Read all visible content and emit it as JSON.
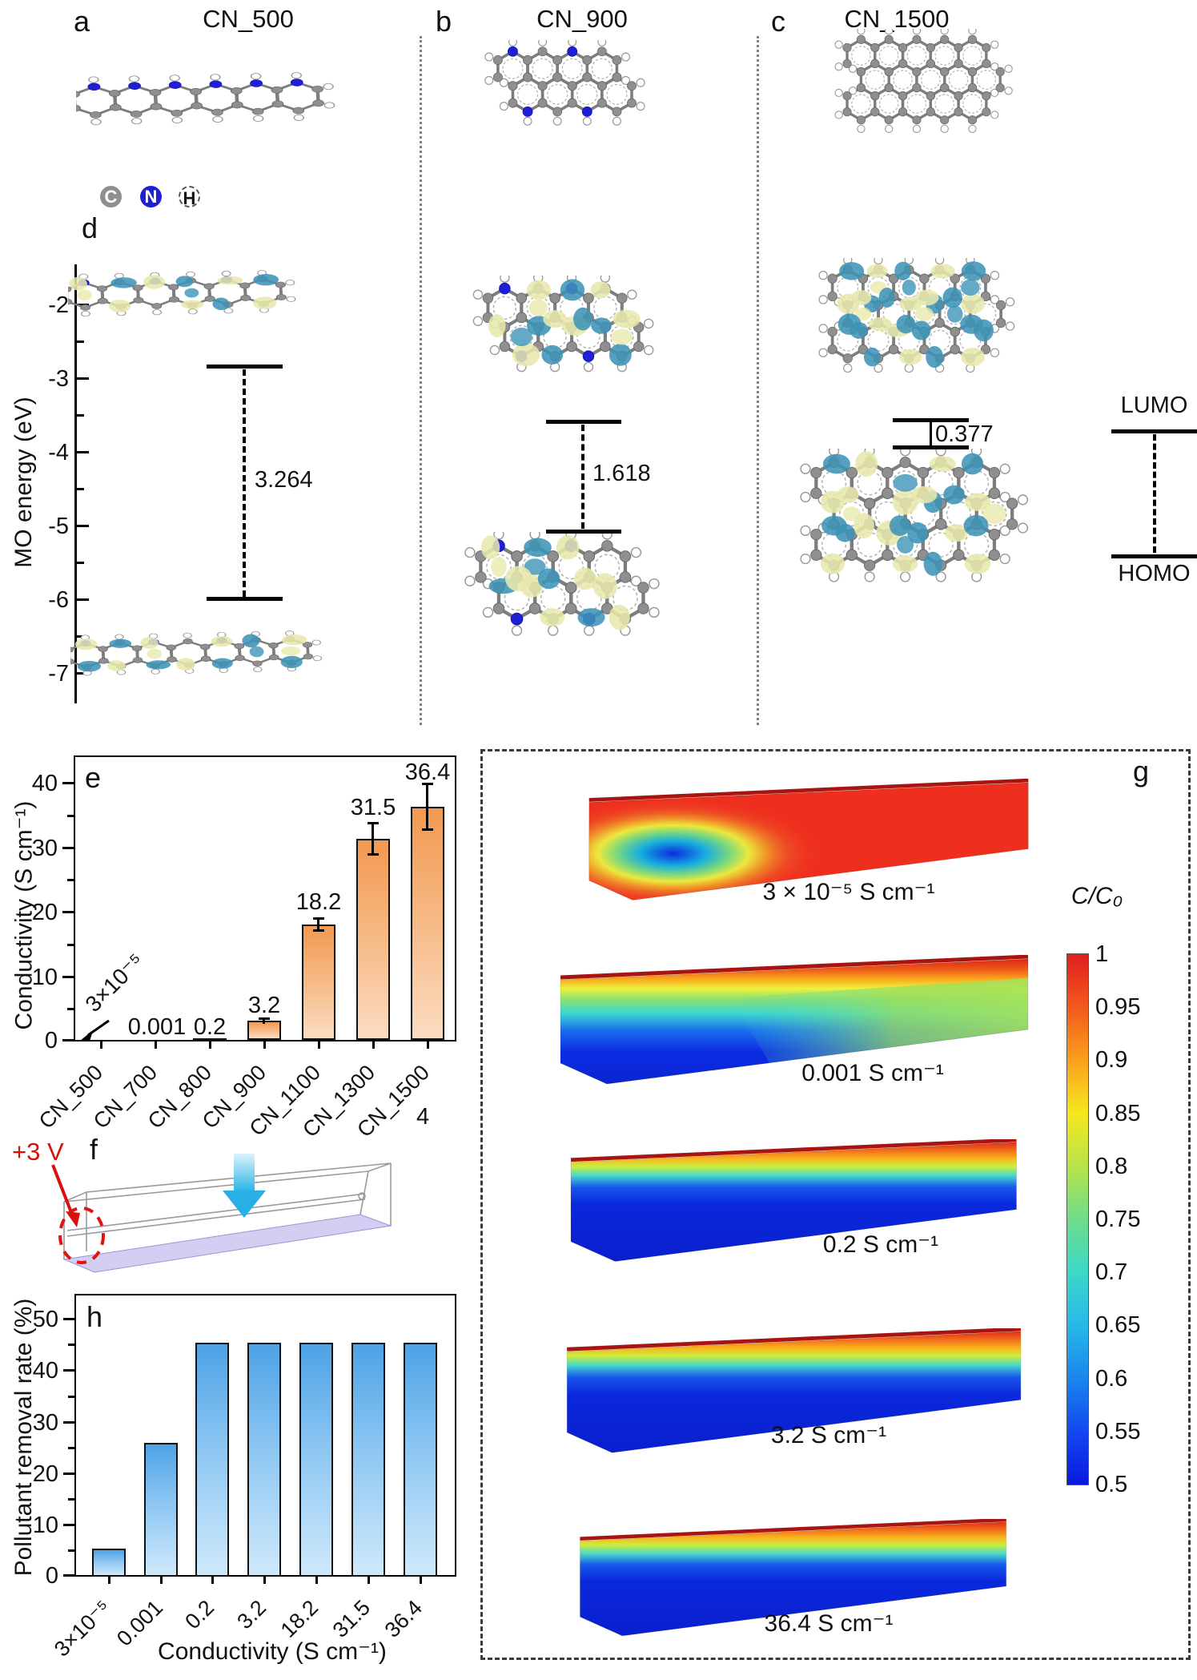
{
  "figure": {
    "panel_a": {
      "label": "a",
      "title": "CN_500"
    },
    "panel_b": {
      "label": "b",
      "title": "CN_900"
    },
    "panel_c": {
      "label": "c",
      "title": "CN_1500"
    },
    "legend": {
      "carbon": "C",
      "nitrogen": "N",
      "hydrogen": "H"
    },
    "panel_d": {
      "label": "d",
      "ylabel": "MO energy (eV)",
      "yticks": [
        "-2",
        "-3",
        "-4",
        "-5",
        "-6",
        "-7"
      ],
      "gap_cn500": "3.264",
      "gap_cn900": "1.618",
      "gap_cn1500": "0.377",
      "lumo": "LUMO",
      "homo": "HOMO"
    },
    "panel_e": {
      "label": "e",
      "stray": "4"
    },
    "panel_f": {
      "label": "f",
      "voltage": "+3 V"
    },
    "panel_g": {
      "label": "g"
    },
    "panel_h": {
      "label": "h"
    }
  },
  "chart_data": [
    {
      "id": "e",
      "type": "bar",
      "ylabel": "Conductivity (S cm⁻¹)",
      "categories": [
        "CN_500",
        "CN_700",
        "CN_800",
        "CN_900",
        "CN_1100",
        "CN_1300",
        "CN_1500"
      ],
      "values": [
        3e-05,
        0.001,
        0.2,
        3.2,
        18.2,
        31.5,
        36.4
      ],
      "value_labels": [
        "3×10⁻⁵",
        "0.001",
        "0.2",
        "3.2",
        "18.2",
        "31.5",
        "36.4"
      ],
      "error_bars": [
        0,
        0,
        0,
        0.4,
        0.9,
        2.4,
        3.5
      ],
      "yticks": [
        0,
        10,
        20,
        30,
        40
      ],
      "ylim": [
        0,
        45
      ],
      "grid": false,
      "bar_color": "#f5a95f"
    },
    {
      "id": "h",
      "type": "bar",
      "xlabel": "Conductivity (S cm⁻¹)",
      "ylabel": "Pollutant removal rate (%)",
      "categories": [
        "3×10⁻⁵",
        "0.001",
        "0.2",
        "3.2",
        "18.2",
        "31.5",
        "36.4"
      ],
      "values": [
        5.5,
        26,
        45.5,
        45.5,
        45.5,
        45.5,
        45.5
      ],
      "yticks": [
        0,
        10,
        20,
        30,
        40,
        50
      ],
      "ylim": [
        0,
        55
      ],
      "grid": false,
      "bar_color": "#5fb0ea"
    },
    {
      "id": "g",
      "type": "heatmap",
      "plot_labels": [
        "3 × 10⁻⁵ S cm⁻¹",
        "0.001 S cm⁻¹",
        "0.2 S cm⁻¹",
        "3.2 S cm⁻¹",
        "36.4 S cm⁻¹"
      ],
      "colorbar": {
        "title": "C/C₀",
        "min": 0.5,
        "max": 1,
        "ticks": [
          "1",
          "0.95",
          "0.9",
          "0.85",
          "0.8",
          "0.75",
          "0.7",
          "0.65",
          "0.6",
          "0.55",
          "0.5"
        ]
      }
    },
    {
      "id": "d",
      "type": "energy-levels",
      "ylabel": "MO energy (eV)",
      "yticks": [
        -2,
        -3,
        -4,
        -5,
        -6,
        -7
      ],
      "series": [
        {
          "name": "CN_500",
          "gap_eV": 3.264
        },
        {
          "name": "CN_900",
          "gap_eV": 1.618
        },
        {
          "name": "CN_1500",
          "gap_eV": 0.377
        }
      ]
    }
  ]
}
